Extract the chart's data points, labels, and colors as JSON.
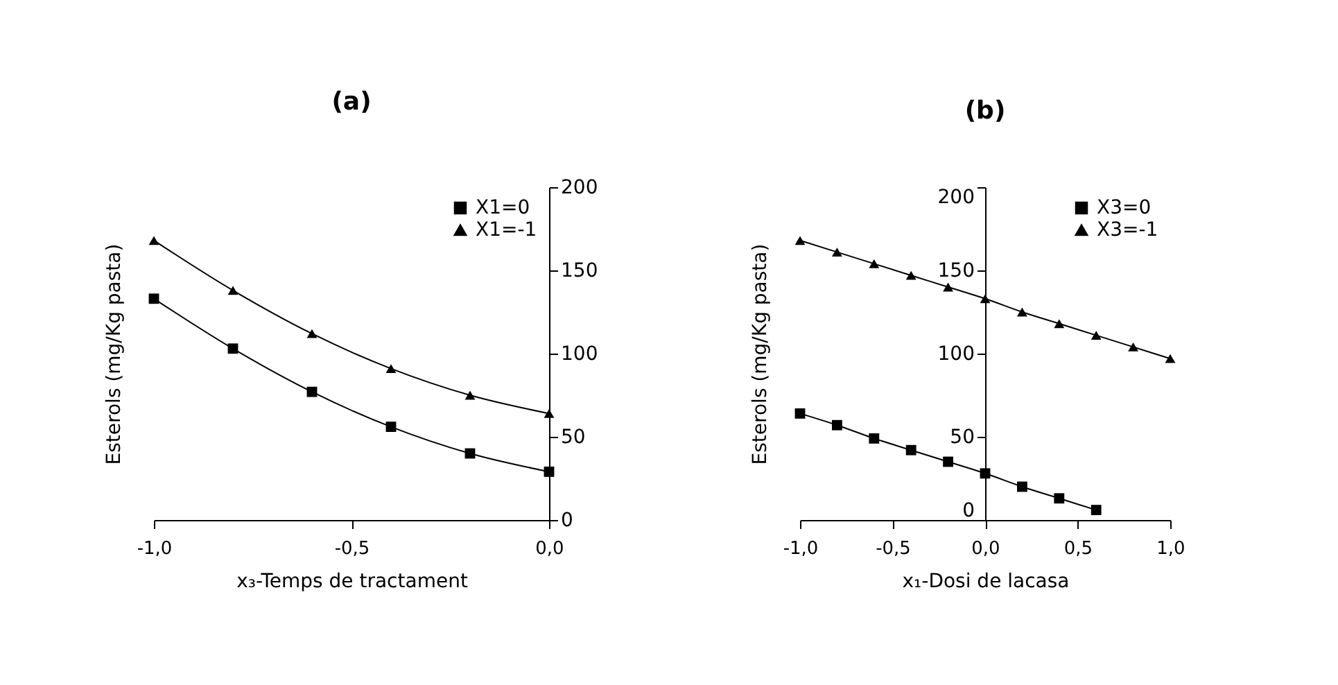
{
  "chart_data": [
    {
      "type": "line",
      "title": "(a)",
      "xlabel": "x₃-Temps de tractament",
      "ylabel": "Esterols (mg/Kg pasta)",
      "x": [
        -1.0,
        -0.8,
        -0.6,
        -0.4,
        -0.2,
        0.0
      ],
      "series": [
        {
          "name": "X1=0",
          "color": "#000000",
          "marker": "square",
          "values": [
            133,
            103,
            77,
            56,
            40,
            29
          ]
        },
        {
          "name": "X1=-1",
          "color": "#000000",
          "marker": "triangle",
          "values": [
            168,
            138,
            112,
            91,
            75,
            64
          ]
        }
      ],
      "xlim": [
        -1.0,
        0.0
      ],
      "xticks": [
        {
          "value": -1.0,
          "label": "-1,0"
        },
        {
          "value": -0.5,
          "label": "-0,5"
        },
        {
          "value": 0.0,
          "label": "0,0"
        }
      ],
      "ylim": [
        0,
        200
      ],
      "yticks": [
        0,
        50,
        100,
        150,
        200
      ],
      "grid": false,
      "legend": "top right",
      "line_style": "solid"
    },
    {
      "type": "line",
      "title": "(b)",
      "xlabel": "x₁-Dosi de lacasa",
      "ylabel": "Esterols (mg/Kg pasta)",
      "series": [
        {
          "name": "X3=0",
          "color": "#000000",
          "marker": "square",
          "x": [
            -1.0,
            -0.8,
            -0.6,
            -0.4,
            -0.2,
            0.0,
            0.2,
            0.4,
            0.6
          ],
          "values": [
            64,
            57,
            49,
            42,
            35,
            28,
            20,
            13,
            6
          ]
        },
        {
          "name": "X3=-1",
          "color": "#000000",
          "marker": "triangle",
          "x": [
            -1.0,
            -0.8,
            -0.6,
            -0.4,
            -0.2,
            0.0,
            0.2,
            0.4,
            0.6,
            0.8,
            1.0
          ],
          "values": [
            168,
            161,
            154,
            147,
            140,
            133,
            125,
            118,
            111,
            104,
            97
          ]
        }
      ],
      "xlim": [
        -1.0,
        1.0
      ],
      "xticks": [
        {
          "value": -1.0,
          "label": "-1,0"
        },
        {
          "value": -0.5,
          "label": "-0,5"
        },
        {
          "value": 0.0,
          "label": "0,0"
        },
        {
          "value": 0.5,
          "label": "0,5"
        },
        {
          "value": 1.0,
          "label": "1,0"
        }
      ],
      "ylim": [
        0,
        200
      ],
      "yticks": [
        0,
        50,
        100,
        150,
        200
      ],
      "grid": false,
      "legend": "top right",
      "line_style": "solid"
    }
  ]
}
